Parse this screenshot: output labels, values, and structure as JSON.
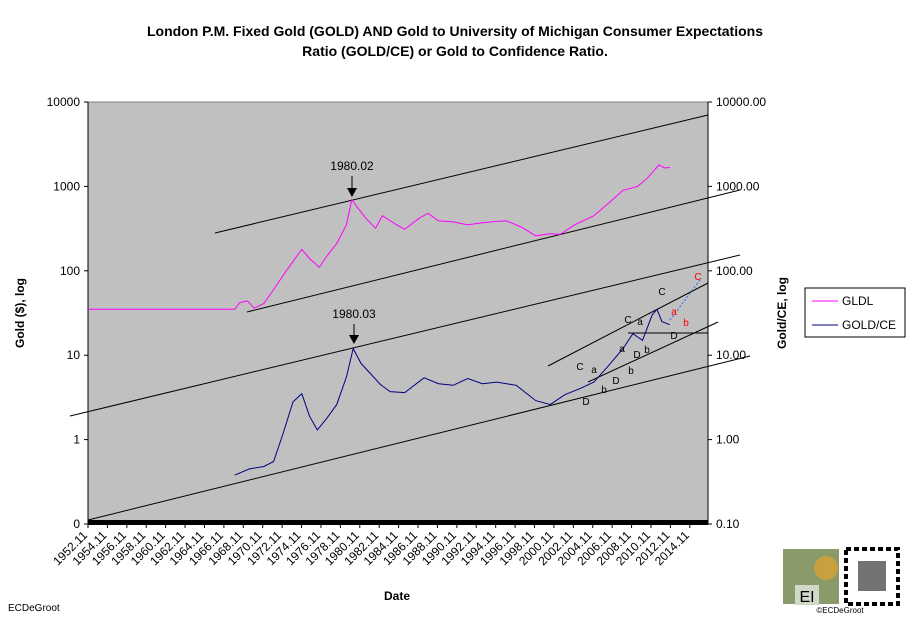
{
  "chart_data": {
    "type": "line",
    "title": "London P.M. Fixed Gold (GOLD) AND Gold to University of Michigan Consumer Expectations",
    "subtitle": "Ratio (GOLD/CE) or Gold to Confidence Ratio.",
    "x_label": "Date",
    "y_label": "Gold ($), log",
    "y2_label": "Gold/CE, log",
    "log_scale": true,
    "legend": "right",
    "xlim": [
      1952.875,
      2016.75
    ],
    "xticks": [
      {
        "value": 1952.875,
        "label": "1952.11"
      },
      {
        "value": 1954.875,
        "label": "1954.11"
      },
      {
        "value": 1956.875,
        "label": "1956.11"
      },
      {
        "value": 1958.875,
        "label": "1958.11"
      },
      {
        "value": 1960.875,
        "label": "1960.11"
      },
      {
        "value": 1962.875,
        "label": "1962.11"
      },
      {
        "value": 1964.875,
        "label": "1964.11"
      },
      {
        "value": 1966.875,
        "label": "1966.11"
      },
      {
        "value": 1968.875,
        "label": "1968.11"
      },
      {
        "value": 1970.875,
        "label": "1970.11"
      },
      {
        "value": 1972.875,
        "label": "1972.11"
      },
      {
        "value": 1974.875,
        "label": "1974.11"
      },
      {
        "value": 1976.875,
        "label": "1976.11"
      },
      {
        "value": 1978.875,
        "label": "1978.11"
      },
      {
        "value": 1980.875,
        "label": "1980.11"
      },
      {
        "value": 1982.875,
        "label": "1982.11"
      },
      {
        "value": 1984.875,
        "label": "1984.11"
      },
      {
        "value": 1986.875,
        "label": "1986.11"
      },
      {
        "value": 1988.875,
        "label": "1988.11"
      },
      {
        "value": 1990.875,
        "label": "1990.11"
      },
      {
        "value": 1992.875,
        "label": "1992.11"
      },
      {
        "value": 1994.875,
        "label": "1994.11"
      },
      {
        "value": 1996.875,
        "label": "1996.11"
      },
      {
        "value": 1998.875,
        "label": "1998.11"
      },
      {
        "value": 2000.875,
        "label": "2000.11"
      },
      {
        "value": 2002.875,
        "label": "2002.11"
      },
      {
        "value": 2004.875,
        "label": "2004.11"
      },
      {
        "value": 2006.875,
        "label": "2006.11"
      },
      {
        "value": 2008.875,
        "label": "2008.11"
      },
      {
        "value": 2010.875,
        "label": "2010.11"
      },
      {
        "value": 2012.875,
        "label": "2012.11"
      },
      {
        "value": 2014.875,
        "label": "2014.11"
      }
    ],
    "ylim": [
      0.1,
      10000
    ],
    "yticks": [
      {
        "value": 0.1,
        "label": "0"
      },
      1,
      10,
      100,
      1000,
      10000
    ],
    "y2lim": [
      0.1,
      10000
    ],
    "y2ticks": [
      {
        "value": 0.1,
        "label": "0.10"
      },
      {
        "value": 1,
        "label": "1.00"
      },
      {
        "value": 10,
        "label": "10.00"
      },
      {
        "value": 100,
        "label": "100.00"
      },
      {
        "value": 1000,
        "label": "1000.00"
      },
      {
        "value": 10000,
        "label": "10000.00"
      }
    ],
    "series": [
      {
        "name": "GLDL",
        "color": "#ff00ff",
        "x": [
          1952.875,
          1968.0,
          1968.5,
          1969.3,
          1970.0,
          1971.0,
          1972.0,
          1973.3,
          1974.9,
          1975.7,
          1976.7,
          1977.5,
          1978.5,
          1979.5,
          1980.05,
          1980.7,
          1981.5,
          1982.5,
          1983.2,
          1984.5,
          1985.5,
          1987.0,
          1987.9,
          1989.0,
          1990.5,
          1992.0,
          1993.5,
          1995.0,
          1996.0,
          1997.5,
          1999.0,
          2000.5,
          2001.5,
          2003.0,
          2005.0,
          2006.5,
          2008.0,
          2009.5,
          2010.5,
          2011.7,
          2012.3,
          2012.8
        ],
        "values": [
          35,
          35,
          42,
          44,
          36,
          41,
          60,
          100,
          180,
          140,
          110,
          150,
          210,
          350,
          700,
          550,
          420,
          320,
          450,
          360,
          310,
          420,
          480,
          390,
          380,
          350,
          370,
          385,
          390,
          330,
          260,
          275,
          270,
          350,
          450,
          630,
          900,
          1000,
          1250,
          1800,
          1650,
          1680
        ],
        "axis": "y"
      },
      {
        "name": "GOLD/CE",
        "color": "#000080",
        "x": [
          1968.0,
          1969.5,
          1971.0,
          1972.0,
          1973.0,
          1974.0,
          1974.9,
          1975.7,
          1976.5,
          1977.5,
          1978.5,
          1979.5,
          1980.2,
          1981.0,
          1982.0,
          1983.0,
          1984.0,
          1985.5,
          1987.5,
          1989.0,
          1990.5,
          1992.0,
          1993.5,
          1995.0,
          1997.0,
          1999.0,
          2000.5,
          2002.0,
          2003.5,
          2005.0,
          2006.5,
          2008.0,
          2009.0,
          2010.0,
          2011.0,
          2011.5,
          2012.0,
          2012.8
        ],
        "values": [
          0.38,
          0.45,
          0.48,
          0.55,
          1.2,
          2.8,
          3.5,
          1.9,
          1.3,
          1.8,
          2.6,
          5.5,
          12,
          8,
          6,
          4.5,
          3.7,
          3.6,
          5.4,
          4.6,
          4.4,
          5.3,
          4.6,
          4.8,
          4.4,
          2.9,
          2.6,
          3.4,
          4.0,
          4.8,
          7.5,
          12,
          18,
          15,
          30,
          35,
          25,
          23
        ],
        "axis": "y2"
      }
    ],
    "annotations": [
      "1980.02",
      "1980.03",
      "C",
      "a",
      "D",
      "b",
      "D",
      "b",
      "a",
      "D",
      "b",
      "C",
      "a",
      "D",
      "a",
      "b",
      "C",
      "C"
    ],
    "footer": "ECDeGroot",
    "logo_text": "EI",
    "logo_caption": "©ECDeGroot"
  }
}
